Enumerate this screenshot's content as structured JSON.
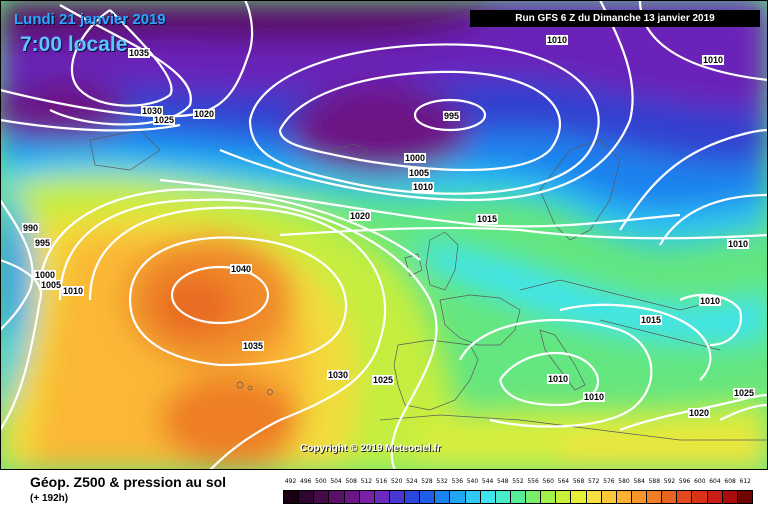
{
  "header": {
    "date": "Lundi 21 janvier 2019",
    "time": "7:00 locale",
    "run_info": "Run GFS 6 Z du Dimanche 13 janvier 2019"
  },
  "copyright": "Copyright © 2019 Meteociel.fr",
  "footer": {
    "title": "Géop. Z500 & pression au sol",
    "subtitle": "(+ 192h)"
  },
  "scale": {
    "ticks": [
      "492",
      "496",
      "500",
      "504",
      "508",
      "512",
      "516",
      "520",
      "524",
      "528",
      "532",
      "536",
      "540",
      "544",
      "548",
      "552",
      "556",
      "560",
      "564",
      "568",
      "572",
      "576",
      "580",
      "584",
      "588",
      "592",
      "596",
      "600",
      "604",
      "608",
      "612"
    ],
    "colors": [
      "#1a0012",
      "#2e0530",
      "#440a4a",
      "#5a0f68",
      "#6c1686",
      "#7a20a4",
      "#6a2ac0",
      "#4a36d2",
      "#2c46dc",
      "#1e5ee6",
      "#1a82ee",
      "#20a6f2",
      "#30c8f4",
      "#40e4ee",
      "#48ecc8",
      "#58ec9a",
      "#78ee6c",
      "#a2f04a",
      "#c8f03a",
      "#e6ee3a",
      "#f8e040",
      "#fcc83a",
      "#fcb034",
      "#f8962c",
      "#f07e26",
      "#e86420",
      "#e04a1c",
      "#d83218",
      "#c81c14",
      "#a80c0c",
      "#700404"
    ]
  },
  "isobars": [
    {
      "text": "1035"
    },
    {
      "text": "1030"
    },
    {
      "text": "1025"
    },
    {
      "text": "1020"
    },
    {
      "text": "1010"
    },
    {
      "text": "1010"
    },
    {
      "text": "995"
    },
    {
      "text": "1000"
    },
    {
      "text": "1005"
    },
    {
      "text": "1010"
    },
    {
      "text": "1020"
    },
    {
      "text": "1015"
    },
    {
      "text": "990"
    },
    {
      "text": "995"
    },
    {
      "text": "1000"
    },
    {
      "text": "1005"
    },
    {
      "text": "1010"
    },
    {
      "text": "1040"
    },
    {
      "text": "1035"
    },
    {
      "text": "1030"
    },
    {
      "text": "1025"
    },
    {
      "text": "1010"
    },
    {
      "text": "1010"
    },
    {
      "text": "1015"
    },
    {
      "text": "1010"
    },
    {
      "text": "1010"
    },
    {
      "text": "1020"
    },
    {
      "text": "1025"
    }
  ]
}
